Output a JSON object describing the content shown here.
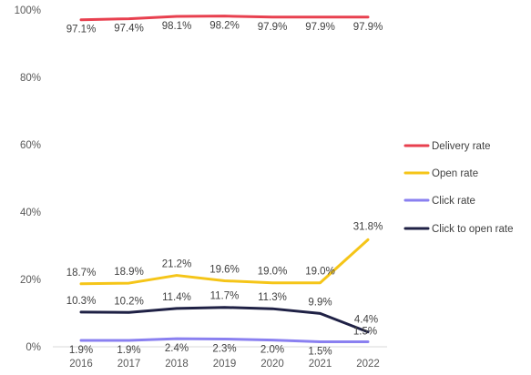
{
  "chart_data": {
    "type": "line",
    "x": [
      "2016",
      "2017",
      "2018",
      "2019",
      "2020",
      "2021",
      "2022"
    ],
    "y_ticks": [
      "0%",
      "20%",
      "40%",
      "60%",
      "80%",
      "100%"
    ],
    "ylim": [
      0,
      100
    ],
    "grid": false,
    "legend_position": "right",
    "series": [
      {
        "name": "Delivery rate",
        "color": "#e8404f",
        "values": [
          97.1,
          97.4,
          98.1,
          98.2,
          97.9,
          97.9,
          97.9
        ],
        "labels": [
          "97.1%",
          "97.4%",
          "98.1%",
          "98.2%",
          "97.9%",
          "97.9%",
          "97.9%"
        ]
      },
      {
        "name": "Open rate",
        "color": "#f5c518",
        "values": [
          18.7,
          18.9,
          21.2,
          19.6,
          19.0,
          19.0,
          31.8
        ],
        "labels": [
          "18.7%",
          "18.9%",
          "21.2%",
          "19.6%",
          "19.0%",
          "19.0%",
          "31.8%"
        ]
      },
      {
        "name": "Click rate",
        "color": "#8a80f0",
        "values": [
          1.9,
          1.9,
          2.4,
          2.3,
          2.0,
          1.5,
          1.5
        ],
        "labels": [
          "1.9%",
          "1.9%",
          "2.4%",
          "2.3%",
          "2.0%",
          "1.5%",
          "1.5%"
        ]
      },
      {
        "name": "Click to open rate",
        "color": "#1f2145",
        "values": [
          10.3,
          10.2,
          11.4,
          11.7,
          11.3,
          9.9,
          4.4
        ],
        "labels": [
          "10.3%",
          "10.2%",
          "11.4%",
          "11.7%",
          "11.3%",
          "9.9%",
          "4.4%"
        ]
      }
    ]
  }
}
